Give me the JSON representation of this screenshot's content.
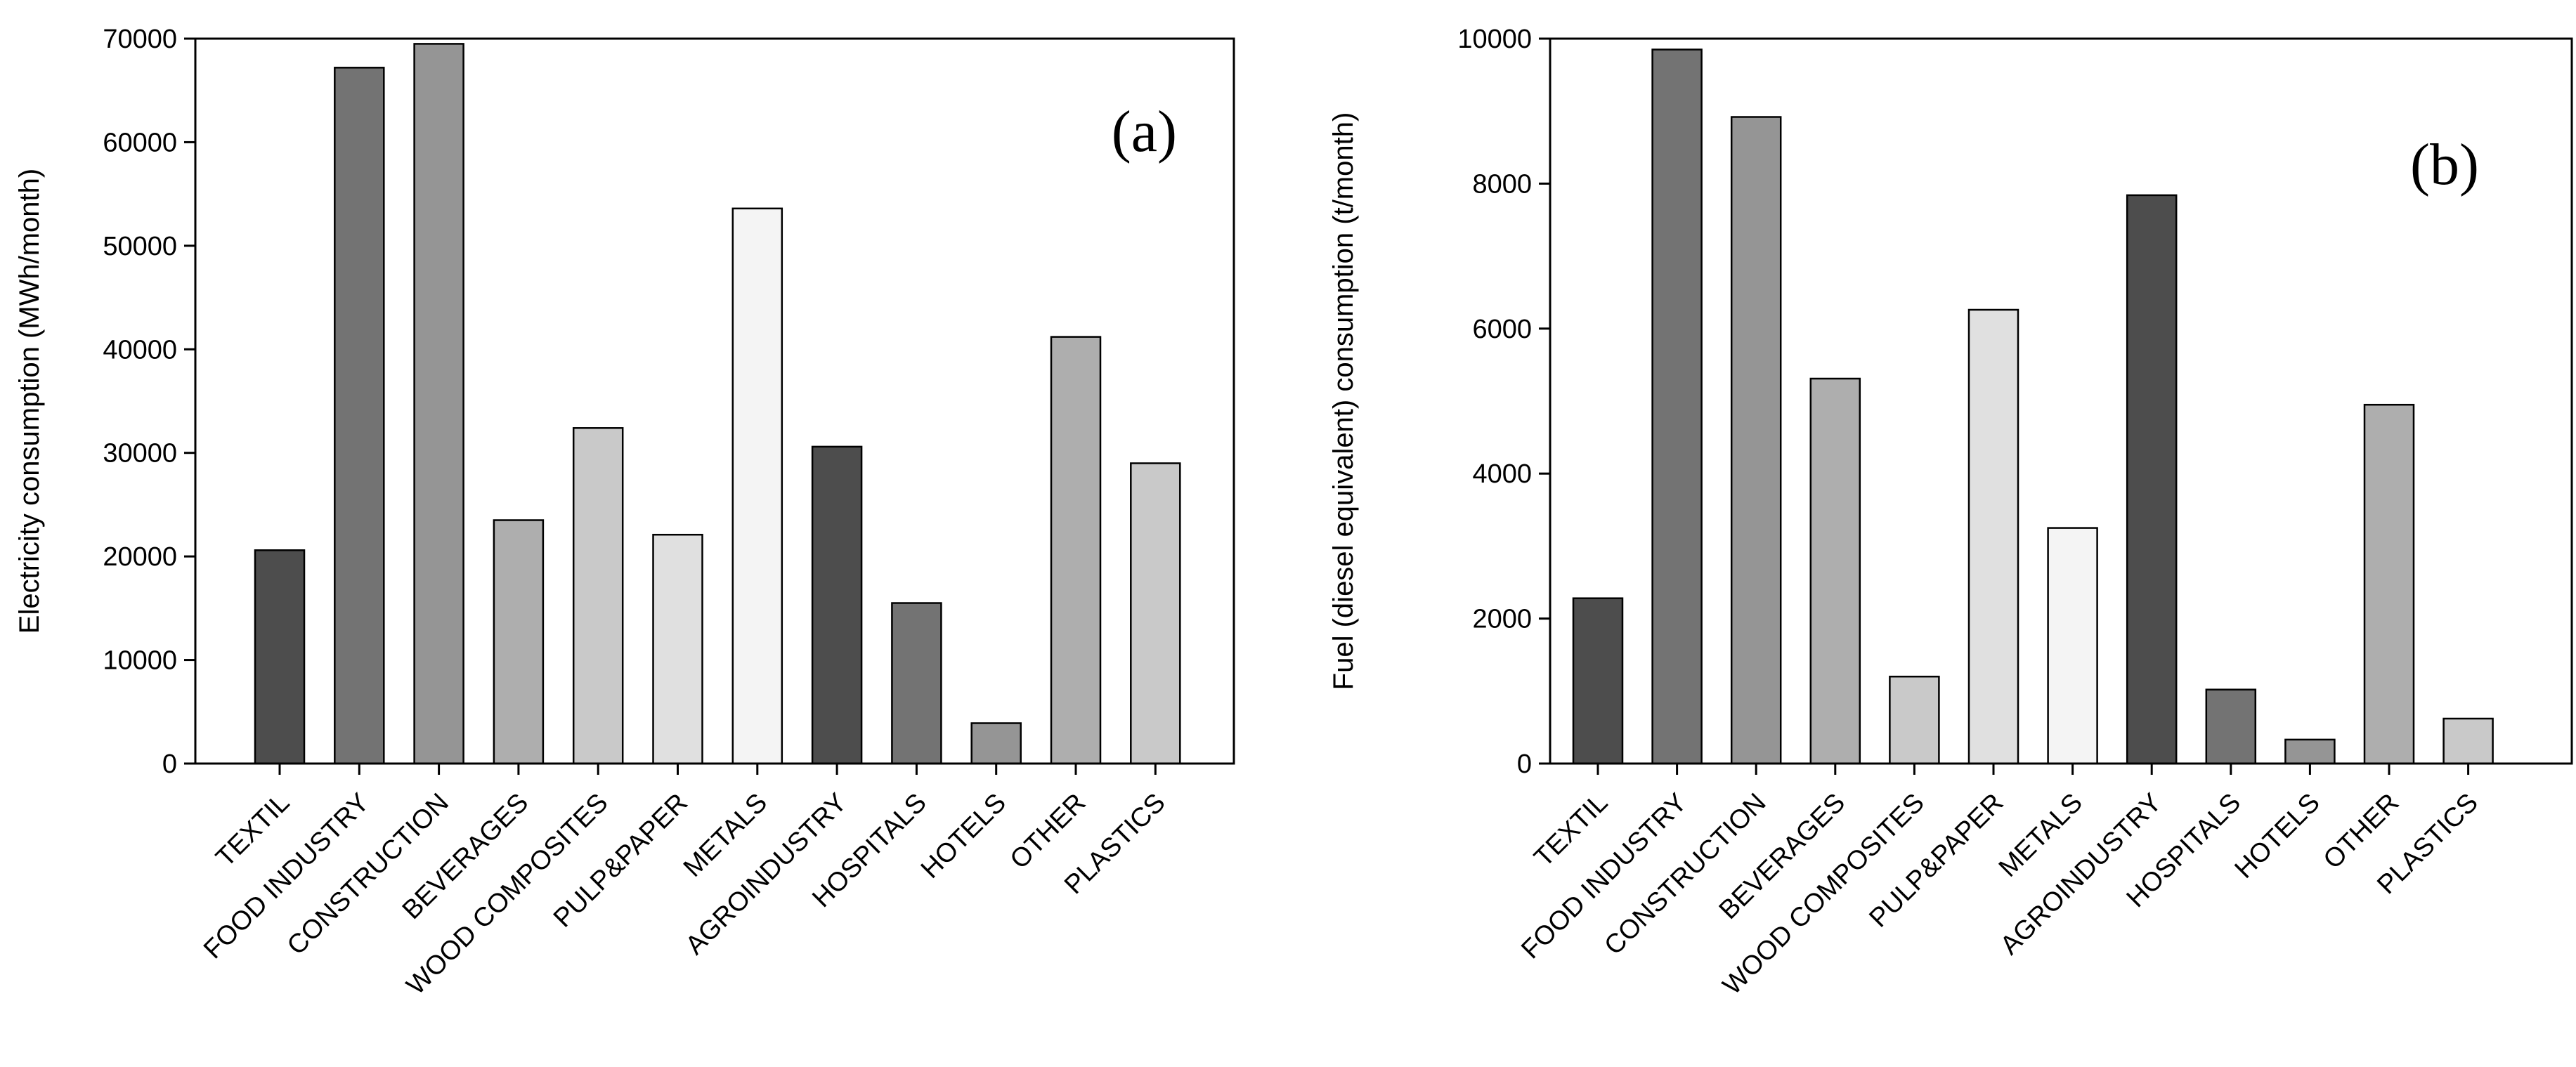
{
  "chart_data": [
    {
      "type": "bar",
      "panel_label": "(a)",
      "title": "",
      "xlabel": "",
      "ylabel": "Electricity consumption (MWh/month)",
      "ylim": [
        0,
        70000
      ],
      "yticks": [
        0,
        10000,
        20000,
        30000,
        40000,
        50000,
        60000,
        70000
      ],
      "ytick_labels": [
        "0",
        "10000",
        "20000",
        "30000",
        "40000",
        "50000",
        "60000",
        "70000"
      ],
      "grid": false,
      "categories": [
        "TEXTIL",
        "FOOD INDUSTRY",
        "CONSTRUCTION",
        "BEVERAGES",
        "WOOD COMPOSITES",
        "PULP&PAPER",
        "METALS",
        "AGROINDUSTRY",
        "HOSPITALS",
        "HOTELS",
        "OTHER",
        "PLASTICS"
      ],
      "values": [
        20600,
        67200,
        69500,
        23500,
        32400,
        22100,
        53600,
        30600,
        15500,
        3900,
        41200,
        29000
      ],
      "colors": [
        "#4d4d4d",
        "#737373",
        "#959595",
        "#aeaeae",
        "#c9c9c9",
        "#e0e0e0",
        "#f4f4f4",
        "#4d4d4d",
        "#737373",
        "#959595",
        "#aeaeae",
        "#c9c9c9"
      ]
    },
    {
      "type": "bar",
      "panel_label": "(b)",
      "title": "",
      "xlabel": "",
      "ylabel": "Fuel (diesel equivalent) consumption (t/month)",
      "ylim": [
        0,
        10000
      ],
      "yticks": [
        0,
        2000,
        4000,
        6000,
        8000,
        10000
      ],
      "ytick_labels": [
        "0",
        "2000",
        "4000",
        "6000",
        "8000",
        "10000"
      ],
      "grid": false,
      "categories": [
        "TEXTIL",
        "FOOD INDUSTRY",
        "CONSTRUCTION",
        "BEVERAGES",
        "WOOD COMPOSITES",
        "PULP&PAPER",
        "METALS",
        "AGROINDUSTRY",
        "HOSPITALS",
        "HOTELS",
        "OTHER",
        "PLASTICS"
      ],
      "values": [
        2280,
        9850,
        8920,
        5310,
        1200,
        6260,
        3250,
        7840,
        1020,
        330,
        4950,
        620
      ],
      "colors": [
        "#4d4d4d",
        "#737373",
        "#959595",
        "#aeaeae",
        "#c9c9c9",
        "#e0e0e0",
        "#f4f4f4",
        "#4d4d4d",
        "#737373",
        "#959595",
        "#aeaeae",
        "#c9c9c9"
      ]
    }
  ]
}
